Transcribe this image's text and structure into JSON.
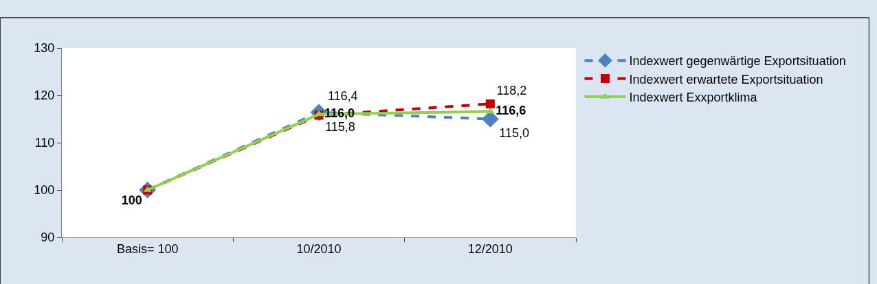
{
  "chart_data": {
    "type": "line",
    "categories": [
      "Basis= 100",
      "10/2010",
      "12/2010"
    ],
    "ylim": [
      90,
      130
    ],
    "yticks": [
      90,
      100,
      110,
      120,
      130
    ],
    "grid": false,
    "legend": "top right",
    "series": [
      {
        "name": "Indexwert gegenwärtige Exportsituation",
        "color": "#4f81bd",
        "values": [
          100,
          116.4,
          115.0
        ],
        "marker": "diamond",
        "line_style": "dashed",
        "value_labels": [
          null,
          "116,4",
          "115,0"
        ]
      },
      {
        "name": "Indexwert erwartete Exportsituation",
        "color": "#c00000",
        "values": [
          100,
          115.8,
          118.2
        ],
        "marker": "square",
        "line_style": "dashed",
        "value_labels": [
          null,
          "115,8",
          "118,2"
        ]
      },
      {
        "name": "Indexwert Exxportklima",
        "color": "#92d050",
        "values": [
          100,
          116.0,
          116.6
        ],
        "marker": "triangle",
        "line_style": "solid",
        "value_labels": [
          "100",
          "116,0",
          "116,6"
        ]
      }
    ]
  }
}
